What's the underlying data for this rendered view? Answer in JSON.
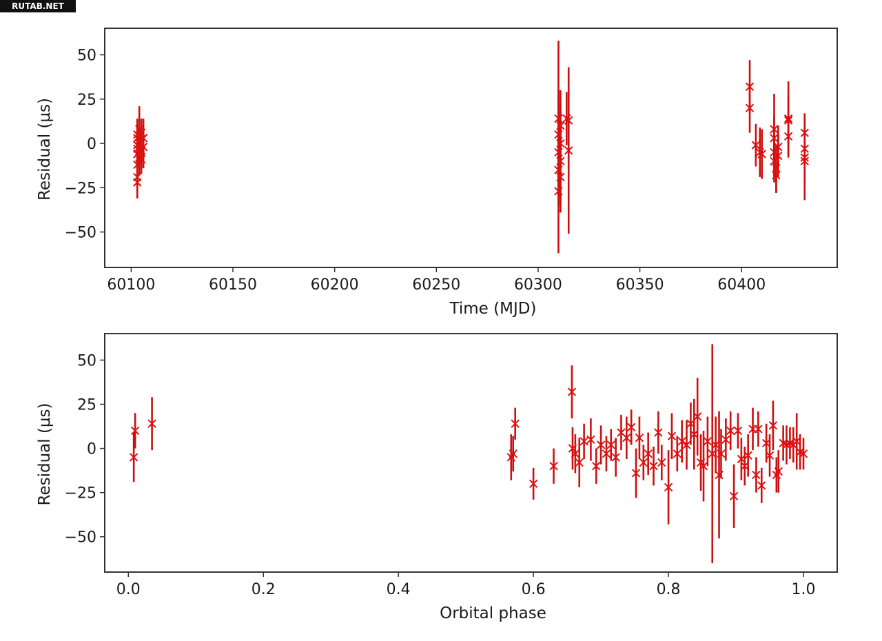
{
  "watermark": "RUTAB.NET",
  "colors": {
    "points": "#e01010",
    "errorbars": "#cc0f0f",
    "axes": "#333333"
  },
  "chart_data": [
    {
      "type": "scatter",
      "marker": "x",
      "xlabel": "Time (MJD)",
      "ylabel": "Residual (μs)",
      "xlim": [
        60087,
        60447
      ],
      "ylim": [
        -70,
        65
      ],
      "xticks": [
        60100,
        60150,
        60200,
        60250,
        60300,
        60350,
        60400
      ],
      "yticks": [
        -50,
        -25,
        0,
        25,
        50
      ],
      "grid": false,
      "points": [
        {
          "x": 60103,
          "y": 5,
          "err": 9
        },
        {
          "x": 60103,
          "y": 3,
          "err": 10
        },
        {
          "x": 60103,
          "y": -1,
          "err": 12
        },
        {
          "x": 60103,
          "y": -3,
          "err": 11
        },
        {
          "x": 60103,
          "y": -6,
          "err": 12
        },
        {
          "x": 60103,
          "y": -12,
          "err": 14
        },
        {
          "x": 60103,
          "y": -19,
          "err": 12
        },
        {
          "x": 60103,
          "y": -22,
          "err": 9
        },
        {
          "x": 60104,
          "y": 8,
          "err": 13
        },
        {
          "x": 60104,
          "y": 0,
          "err": 14
        },
        {
          "x": 60104,
          "y": -8,
          "err": 10
        },
        {
          "x": 60105,
          "y": 6,
          "err": 8
        },
        {
          "x": 60105,
          "y": -4,
          "err": 9
        },
        {
          "x": 60105,
          "y": -9,
          "err": 8
        },
        {
          "x": 60106,
          "y": -2,
          "err": 12
        },
        {
          "x": 60106,
          "y": 3,
          "err": 11
        },
        {
          "x": 60310,
          "y": 14,
          "err": 44
        },
        {
          "x": 60310,
          "y": 5,
          "err": 25
        },
        {
          "x": 60310,
          "y": -5,
          "err": 25
        },
        {
          "x": 60310,
          "y": -15,
          "err": 20
        },
        {
          "x": 60310,
          "y": -27,
          "err": 35
        },
        {
          "x": 60311,
          "y": 10,
          "err": 20
        },
        {
          "x": 60311,
          "y": 0,
          "err": 22
        },
        {
          "x": 60311,
          "y": -10,
          "err": 25
        },
        {
          "x": 60311,
          "y": -19,
          "err": 20
        },
        {
          "x": 60314,
          "y": 14,
          "err": 15
        },
        {
          "x": 60315,
          "y": 13,
          "err": 28
        },
        {
          "x": 60315,
          "y": -4,
          "err": 47
        },
        {
          "x": 60404,
          "y": 32,
          "err": 15
        },
        {
          "x": 60404,
          "y": 20,
          "err": 14
        },
        {
          "x": 60407,
          "y": -1,
          "err": 12
        },
        {
          "x": 60409,
          "y": -5,
          "err": 14
        },
        {
          "x": 60410,
          "y": -6,
          "err": 14
        },
        {
          "x": 60416,
          "y": 8,
          "err": 20
        },
        {
          "x": 60416,
          "y": 3,
          "err": 12
        },
        {
          "x": 60416,
          "y": -5,
          "err": 14
        },
        {
          "x": 60416,
          "y": -10,
          "err": 12
        },
        {
          "x": 60417,
          "y": -14,
          "err": 13
        },
        {
          "x": 60417,
          "y": -18,
          "err": 10
        },
        {
          "x": 60418,
          "y": -2,
          "err": 12
        },
        {
          "x": 60418,
          "y": -7,
          "err": 12
        },
        {
          "x": 60423,
          "y": 14,
          "err": 21
        },
        {
          "x": 60423,
          "y": 13,
          "err": 14
        },
        {
          "x": 60423,
          "y": 4,
          "err": 12
        },
        {
          "x": 60431,
          "y": 6,
          "err": 11
        },
        {
          "x": 60431,
          "y": -3,
          "err": 12
        },
        {
          "x": 60431,
          "y": -8,
          "err": 24
        },
        {
          "x": 60431,
          "y": -10,
          "err": 12
        }
      ]
    },
    {
      "type": "scatter",
      "marker": "x",
      "xlabel": "Orbital phase",
      "ylabel": "Residual (μs)",
      "xlim": [
        -0.035,
        1.05
      ],
      "ylim": [
        -70,
        65
      ],
      "xticks": [
        0.0,
        0.2,
        0.4,
        0.6,
        0.8,
        1.0
      ],
      "xtick_labels": [
        "0.0",
        "0.2",
        "0.4",
        "0.6",
        "0.8",
        "1.0"
      ],
      "yticks": [
        -50,
        -25,
        0,
        25,
        50
      ],
      "grid": false,
      "points": [
        {
          "x": 0.008,
          "y": -5,
          "err": 14
        },
        {
          "x": 0.01,
          "y": 10,
          "err": 10
        },
        {
          "x": 0.035,
          "y": 14,
          "err": 15
        },
        {
          "x": 0.567,
          "y": -5,
          "err": 13
        },
        {
          "x": 0.57,
          "y": -3,
          "err": 10
        },
        {
          "x": 0.573,
          "y": 14,
          "err": 9
        },
        {
          "x": 0.6,
          "y": -20,
          "err": 9
        },
        {
          "x": 0.63,
          "y": -10,
          "err": 10
        },
        {
          "x": 0.657,
          "y": 32,
          "err": 15
        },
        {
          "x": 0.658,
          "y": 0,
          "err": 12
        },
        {
          "x": 0.662,
          "y": -3,
          "err": 11
        },
        {
          "x": 0.668,
          "y": -8,
          "err": 14
        },
        {
          "x": 0.675,
          "y": 4,
          "err": 10
        },
        {
          "x": 0.685,
          "y": 5,
          "err": 12
        },
        {
          "x": 0.693,
          "y": -10,
          "err": 10
        },
        {
          "x": 0.7,
          "y": 2,
          "err": 11
        },
        {
          "x": 0.708,
          "y": -3,
          "err": 10
        },
        {
          "x": 0.715,
          "y": 2,
          "err": 9
        },
        {
          "x": 0.722,
          "y": -5,
          "err": 11
        },
        {
          "x": 0.73,
          "y": 9,
          "err": 10
        },
        {
          "x": 0.738,
          "y": 6,
          "err": 12
        },
        {
          "x": 0.745,
          "y": 12,
          "err": 10
        },
        {
          "x": 0.752,
          "y": -14,
          "err": 14
        },
        {
          "x": 0.757,
          "y": 6,
          "err": 12
        },
        {
          "x": 0.763,
          "y": -8,
          "err": 10
        },
        {
          "x": 0.77,
          "y": -3,
          "err": 12
        },
        {
          "x": 0.778,
          "y": -10,
          "err": 11
        },
        {
          "x": 0.785,
          "y": 9,
          "err": 12
        },
        {
          "x": 0.79,
          "y": -8,
          "err": 10
        },
        {
          "x": 0.8,
          "y": -22,
          "err": 21
        },
        {
          "x": 0.805,
          "y": 7,
          "err": 13
        },
        {
          "x": 0.813,
          "y": -3,
          "err": 10
        },
        {
          "x": 0.82,
          "y": 4,
          "err": 12
        },
        {
          "x": 0.827,
          "y": 2,
          "err": 14
        },
        {
          "x": 0.833,
          "y": 14,
          "err": 12
        },
        {
          "x": 0.838,
          "y": 8,
          "err": 20
        },
        {
          "x": 0.843,
          "y": 18,
          "err": 22
        },
        {
          "x": 0.848,
          "y": -8,
          "err": 16
        },
        {
          "x": 0.852,
          "y": -10,
          "err": 20
        },
        {
          "x": 0.858,
          "y": 4,
          "err": 14
        },
        {
          "x": 0.865,
          "y": -3,
          "err": 62
        },
        {
          "x": 0.87,
          "y": 2,
          "err": 16
        },
        {
          "x": 0.875,
          "y": -15,
          "err": 36
        },
        {
          "x": 0.878,
          "y": -3,
          "err": 14
        },
        {
          "x": 0.885,
          "y": 5,
          "err": 12
        },
        {
          "x": 0.892,
          "y": 10,
          "err": 11
        },
        {
          "x": 0.897,
          "y": -27,
          "err": 18
        },
        {
          "x": 0.903,
          "y": 10,
          "err": 10
        },
        {
          "x": 0.908,
          "y": -6,
          "err": 12
        },
        {
          "x": 0.913,
          "y": -10,
          "err": 11
        },
        {
          "x": 0.918,
          "y": -4,
          "err": 12
        },
        {
          "x": 0.925,
          "y": 11,
          "err": 12
        },
        {
          "x": 0.93,
          "y": -15,
          "err": 10
        },
        {
          "x": 0.933,
          "y": 11,
          "err": 10
        },
        {
          "x": 0.938,
          "y": -21,
          "err": 10
        },
        {
          "x": 0.945,
          "y": 3,
          "err": 11
        },
        {
          "x": 0.95,
          "y": -4,
          "err": 12
        },
        {
          "x": 0.955,
          "y": 13,
          "err": 14
        },
        {
          "x": 0.96,
          "y": -15,
          "err": 10
        },
        {
          "x": 0.963,
          "y": -13,
          "err": 12
        },
        {
          "x": 0.97,
          "y": 3,
          "err": 10
        },
        {
          "x": 0.975,
          "y": 2,
          "err": 11
        },
        {
          "x": 0.98,
          "y": 3,
          "err": 9
        },
        {
          "x": 0.985,
          "y": 2,
          "err": 10
        },
        {
          "x": 0.99,
          "y": 4,
          "err": 16
        },
        {
          "x": 0.995,
          "y": -2,
          "err": 10
        },
        {
          "x": 1.0,
          "y": -3,
          "err": 9
        }
      ]
    }
  ]
}
